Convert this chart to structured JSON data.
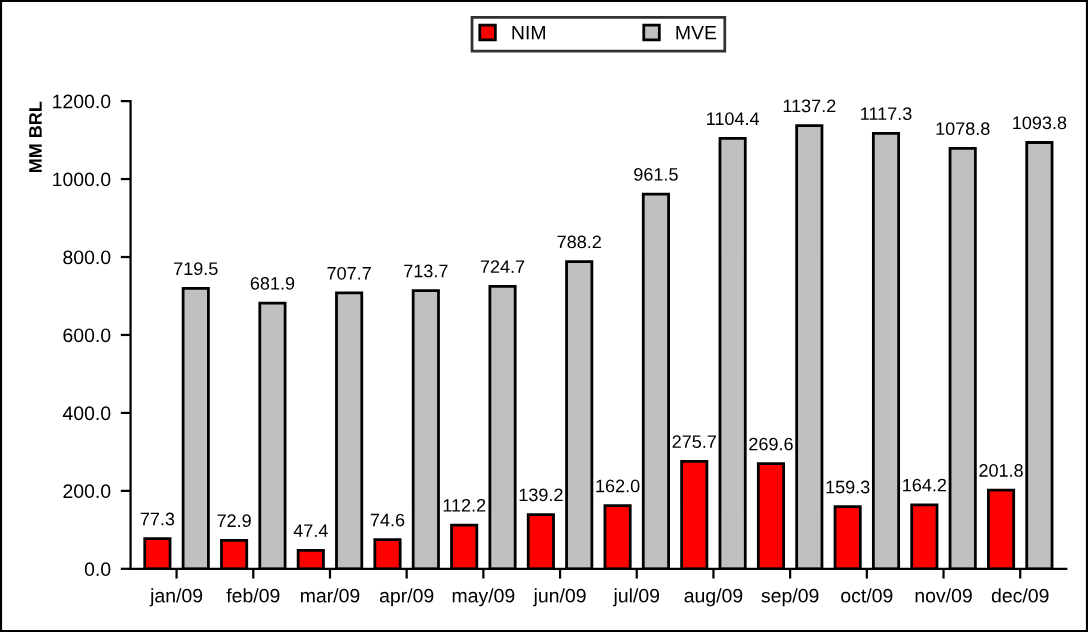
{
  "chart_data": {
    "type": "bar",
    "ylabel": "MM BRL",
    "categories": [
      "jan/09",
      "feb/09",
      "mar/09",
      "apr/09",
      "may/09",
      "jun/09",
      "jul/09",
      "aug/09",
      "sep/09",
      "oct/09",
      "nov/09",
      "dec/09"
    ],
    "series": [
      {
        "name": "NIM",
        "color": "#ff0000",
        "values": [
          77.3,
          72.9,
          47.4,
          74.6,
          112.2,
          139.2,
          162.0,
          275.7,
          269.6,
          159.3,
          164.2,
          201.8
        ],
        "value_labels": [
          "77.3",
          "72.9",
          "47.4",
          "74.6",
          "112.2",
          "139.2",
          "162.0",
          "275.7",
          "269.6",
          "159.3",
          "164.2",
          "201.8"
        ]
      },
      {
        "name": "MVE",
        "color": "#c0c0c0",
        "values": [
          719.5,
          681.9,
          707.7,
          713.7,
          724.7,
          788.2,
          961.5,
          1104.4,
          1137.2,
          1117.3,
          1078.8,
          1093.8
        ],
        "value_labels": [
          "719.5",
          "681.9",
          "707.7",
          "713.7",
          "724.7",
          "788.2",
          "961.5",
          "1104.4",
          "1137.2",
          "1117.3",
          "1078.8",
          "1093.8"
        ]
      }
    ],
    "ylim": [
      0,
      1200
    ],
    "yticks": [
      {
        "value": 0,
        "label": "0.0"
      },
      {
        "value": 200,
        "label": "200.0"
      },
      {
        "value": 400,
        "label": "400.0"
      },
      {
        "value": 600,
        "label": "600.0"
      },
      {
        "value": 800,
        "label": "800.0"
      },
      {
        "value": 1000,
        "label": "1000.0"
      },
      {
        "value": 1200,
        "label": "1200.0"
      }
    ],
    "grid": false,
    "legend": "top"
  }
}
